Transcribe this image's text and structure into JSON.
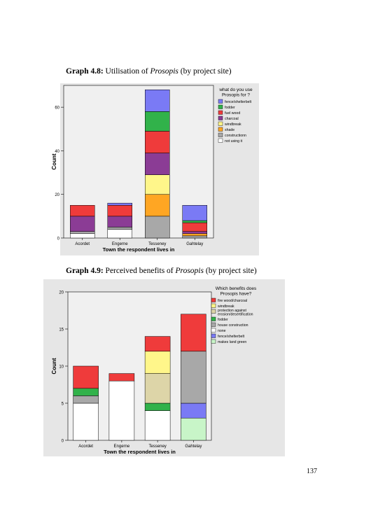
{
  "captions": [
    {
      "label": "Graph 4.8:",
      "pre": "Utilisation of ",
      "italic": "Prosopis",
      "post": " (by project site)"
    },
    {
      "label": "Graph 4.9:",
      "pre": "Perceived benefits of ",
      "italic": "Prosopis",
      "post": " (by project site)"
    }
  ],
  "page_number": "137",
  "chart_data": [
    {
      "type": "bar",
      "stacked": true,
      "title": "",
      "xlabel": "Town the respondent lives in",
      "ylabel": "Count",
      "ylim": [
        0,
        70
      ],
      "yticks": [
        0,
        20,
        40,
        60
      ],
      "grid": false,
      "legend_title": [
        "what do you use",
        "Prosopis for ?"
      ],
      "legend_position": "right",
      "categories": [
        "Acordet",
        "Engerne",
        "Tesseney",
        "Gahtelay"
      ],
      "series": [
        {
          "name": "not using it",
          "color": "#ffffff",
          "values": [
            2,
            4,
            0,
            0
          ]
        },
        {
          "name": "constructionn",
          "color": "#a8a8a8",
          "values": [
            1,
            1,
            10,
            1
          ]
        },
        {
          "name": "shade",
          "color": "#ffa623",
          "values": [
            0,
            0,
            10,
            1
          ]
        },
        {
          "name": "windbreak",
          "color": "#fff68a",
          "values": [
            0,
            0,
            9,
            0
          ]
        },
        {
          "name": "charcoal",
          "color": "#8b3c95",
          "values": [
            7,
            5,
            10,
            1
          ]
        },
        {
          "name": "fuel wood",
          "color": "#ef3b3b",
          "values": [
            5,
            5,
            10,
            4
          ]
        },
        {
          "name": "fodder",
          "color": "#31b24a",
          "values": [
            0,
            0,
            9,
            1
          ]
        },
        {
          "name": "fence/shelterbelt",
          "color": "#7a7af5",
          "values": [
            0,
            1,
            10,
            7
          ]
        }
      ],
      "legend_order": [
        "fence/shelterbelt",
        "fodder",
        "fuel wood",
        "charcoal",
        "windbreak",
        "shade",
        "constructionn",
        "not using it"
      ]
    },
    {
      "type": "bar",
      "stacked": true,
      "title": "",
      "xlabel": "Town the respondent lives in",
      "ylabel": "Count",
      "ylim": [
        0,
        20
      ],
      "yticks": [
        0,
        5,
        10,
        15,
        20
      ],
      "grid": false,
      "legend_title": [
        "Which benefits does",
        "Prosopis have?"
      ],
      "legend_position": "right",
      "categories": [
        "Acordet",
        "Engerne",
        "Tesseney",
        "Gahtelay"
      ],
      "series": [
        {
          "name": "makes land green",
          "color": "#c8f5c8",
          "values": [
            0,
            0,
            0,
            3
          ]
        },
        {
          "name": "fence/shelterbelt",
          "color": "#7a7af5",
          "values": [
            0,
            0,
            0,
            2
          ]
        },
        {
          "name": "none",
          "color": "#ffffff",
          "values": [
            5,
            8,
            4,
            0
          ]
        },
        {
          "name": "house construction",
          "color": "#a8a8a8",
          "values": [
            1,
            0,
            0,
            7
          ]
        },
        {
          "name": "fodder",
          "color": "#31b24a",
          "values": [
            1,
            0,
            1,
            0
          ]
        },
        {
          "name": "protection against erosion/desertification",
          "color": "#ddd5a8",
          "values": [
            0,
            0,
            4,
            0
          ]
        },
        {
          "name": "windbreak",
          "color": "#fff68a",
          "values": [
            0,
            0,
            3,
            0
          ]
        },
        {
          "name": "fire wood/charcoal",
          "color": "#ef3b3b",
          "values": [
            3,
            1,
            2,
            5
          ]
        }
      ],
      "legend_order": [
        "fire wood/charcoal",
        "windbreak",
        "protection against erosion/desertification",
        "fodder",
        "house construction",
        "none",
        "fence/shelterbelt",
        "makes land green"
      ],
      "legend_lines": {
        "protection against erosion/desertification": [
          "protection against",
          "erosion/desertification"
        ]
      }
    }
  ]
}
